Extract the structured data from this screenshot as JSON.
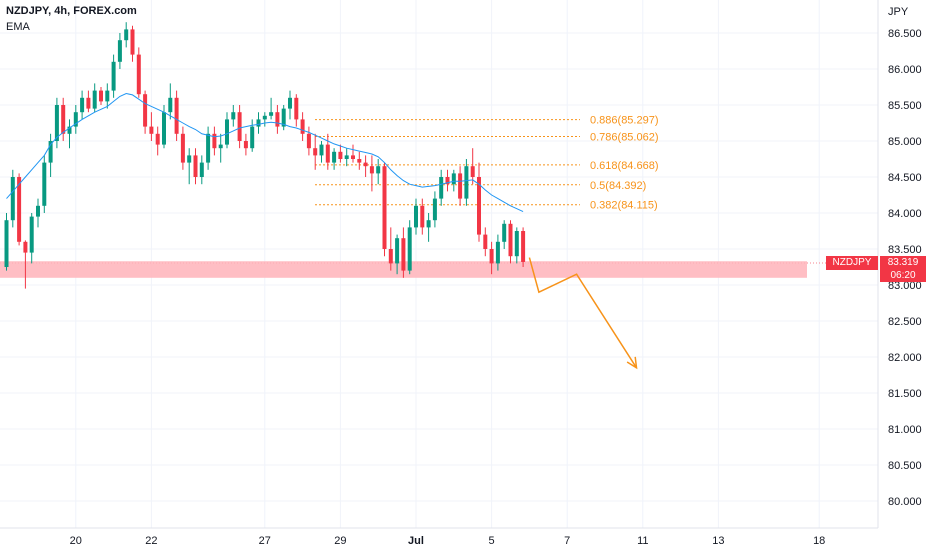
{
  "header": {
    "title": "NZDJPY, 4h, FOREX.com",
    "indicator": "EMA"
  },
  "price_axis": {
    "currency": "JPY"
  },
  "last_price": {
    "symbol": "NZDJPY",
    "price": "83.319",
    "countdown": "06:20",
    "color": "#f23645"
  },
  "colors": {
    "bull": "#089981",
    "bear": "#f23645",
    "ema": "#2196f3",
    "fib": "#f7931a",
    "zone": "#ffb3ba",
    "grid": "#f0f3fa"
  },
  "fib_levels": [
    {
      "label": "0.886(85.297)",
      "price": 85.297
    },
    {
      "label": "0.786(85.062)",
      "price": 85.062
    },
    {
      "label": "0.618(84.668)",
      "price": 84.668
    },
    {
      "label": "0.5(84.392)",
      "price": 84.392
    },
    {
      "label": "0.382(84.115)",
      "price": 84.115
    }
  ],
  "support_zone": {
    "low": 83.1,
    "high": 83.33
  },
  "projection_path": [
    {
      "x": 83,
      "y": 83.38
    },
    {
      "x": 84.5,
      "y": 82.9
    },
    {
      "x": 90.5,
      "y": 83.15
    },
    {
      "x": 100,
      "y": 81.85
    }
  ],
  "chart_data": {
    "type": "candlestick",
    "title": "NZDJPY, 4h, FOREX.com",
    "ylabel": "JPY",
    "ylim": [
      79.65,
      87.0
    ],
    "y_ticks": [
      "86.500",
      "86.000",
      "85.500",
      "85.000",
      "84.500",
      "84.000",
      "83.500",
      "83.000",
      "82.500",
      "82.000",
      "81.500",
      "81.000",
      "80.500",
      "80.000"
    ],
    "x_tick_labels": [
      "20",
      "22",
      "27",
      "29",
      "Jul",
      "5",
      "7",
      "11",
      "13",
      "18"
    ],
    "x_tick_index": [
      11,
      23,
      41,
      53,
      65,
      77,
      89,
      101,
      113,
      129
    ],
    "grid": true,
    "ohlc": [
      [
        83.25,
        84.0,
        83.2,
        83.9
      ],
      [
        83.9,
        84.6,
        83.8,
        84.5
      ],
      [
        84.5,
        84.55,
        83.55,
        83.6
      ],
      [
        83.6,
        83.62,
        82.95,
        83.45
      ],
      [
        83.45,
        84.0,
        83.3,
        83.95
      ],
      [
        83.95,
        84.2,
        83.8,
        84.1
      ],
      [
        84.1,
        84.8,
        84.0,
        84.7
      ],
      [
        84.7,
        85.1,
        84.5,
        85.0
      ],
      [
        85.0,
        85.6,
        84.9,
        85.5
      ],
      [
        85.5,
        85.6,
        85.0,
        85.1
      ],
      [
        85.1,
        85.3,
        84.9,
        85.2
      ],
      [
        85.2,
        85.5,
        85.1,
        85.4
      ],
      [
        85.4,
        85.7,
        85.3,
        85.6
      ],
      [
        85.6,
        85.7,
        85.4,
        85.45
      ],
      [
        85.45,
        85.8,
        85.4,
        85.7
      ],
      [
        85.7,
        85.75,
        85.5,
        85.55
      ],
      [
        85.55,
        85.8,
        85.45,
        85.7
      ],
      [
        85.7,
        86.2,
        85.6,
        86.1
      ],
      [
        86.1,
        86.5,
        86.0,
        86.4
      ],
      [
        86.4,
        86.65,
        86.3,
        86.55
      ],
      [
        86.55,
        86.6,
        86.1,
        86.2
      ],
      [
        86.2,
        86.3,
        85.6,
        85.65
      ],
      [
        85.65,
        85.7,
        85.1,
        85.2
      ],
      [
        85.2,
        85.4,
        85.0,
        85.1
      ],
      [
        85.1,
        85.2,
        84.8,
        84.95
      ],
      [
        84.95,
        85.5,
        84.9,
        85.4
      ],
      [
        85.4,
        85.8,
        85.3,
        85.6
      ],
      [
        85.6,
        85.7,
        85.0,
        85.1
      ],
      [
        85.1,
        85.2,
        84.6,
        84.7
      ],
      [
        84.7,
        84.9,
        84.4,
        84.8
      ],
      [
        84.8,
        84.9,
        84.4,
        84.5
      ],
      [
        84.5,
        84.8,
        84.4,
        84.7
      ],
      [
        84.7,
        85.2,
        84.6,
        85.1
      ],
      [
        85.1,
        85.2,
        84.8,
        84.9
      ],
      [
        84.9,
        85.1,
        84.7,
        84.95
      ],
      [
        84.95,
        85.4,
        84.9,
        85.3
      ],
      [
        85.3,
        85.5,
        85.2,
        85.4
      ],
      [
        85.4,
        85.5,
        84.9,
        85.0
      ],
      [
        85.0,
        85.1,
        84.8,
        84.9
      ],
      [
        84.9,
        85.3,
        84.85,
        85.2
      ],
      [
        85.2,
        85.4,
        85.1,
        85.3
      ],
      [
        85.3,
        85.4,
        85.2,
        85.35
      ],
      [
        85.35,
        85.6,
        85.3,
        85.4
      ],
      [
        85.4,
        85.5,
        85.1,
        85.2
      ],
      [
        85.2,
        85.5,
        85.15,
        85.45
      ],
      [
        85.45,
        85.7,
        85.3,
        85.6
      ],
      [
        85.6,
        85.65,
        85.2,
        85.3
      ],
      [
        85.3,
        85.4,
        85.0,
        85.1
      ],
      [
        85.1,
        85.2,
        84.8,
        84.9
      ],
      [
        84.9,
        85.1,
        84.6,
        84.8
      ],
      [
        84.8,
        85.0,
        84.7,
        84.95
      ],
      [
        84.95,
        85.1,
        84.6,
        84.7
      ],
      [
        84.7,
        84.9,
        84.6,
        84.85
      ],
      [
        84.85,
        84.95,
        84.7,
        84.75
      ],
      [
        84.75,
        84.9,
        84.65,
        84.8
      ],
      [
        84.8,
        84.95,
        84.7,
        84.75
      ],
      [
        84.75,
        84.85,
        84.6,
        84.7
      ],
      [
        84.7,
        84.8,
        84.5,
        84.65
      ],
      [
        84.65,
        84.8,
        84.3,
        84.55
      ],
      [
        84.55,
        84.75,
        84.4,
        84.65
      ],
      [
        84.65,
        84.7,
        83.4,
        83.5
      ],
      [
        83.5,
        83.8,
        83.2,
        83.3
      ],
      [
        83.3,
        83.7,
        83.15,
        83.65
      ],
      [
        83.65,
        83.8,
        83.1,
        83.2
      ],
      [
        83.2,
        83.9,
        83.15,
        83.8
      ],
      [
        83.8,
        84.2,
        83.7,
        84.1
      ],
      [
        84.1,
        84.2,
        83.7,
        83.8
      ],
      [
        83.8,
        84.0,
        83.6,
        83.9
      ],
      [
        83.9,
        84.3,
        83.8,
        84.2
      ],
      [
        84.2,
        84.6,
        84.1,
        84.5
      ],
      [
        84.5,
        84.6,
        84.3,
        84.4
      ],
      [
        84.4,
        84.6,
        84.3,
        84.55
      ],
      [
        84.55,
        84.65,
        84.1,
        84.2
      ],
      [
        84.2,
        84.75,
        84.1,
        84.65
      ],
      [
        84.65,
        84.9,
        84.4,
        84.5
      ],
      [
        84.5,
        84.7,
        83.6,
        83.7
      ],
      [
        83.7,
        83.8,
        83.4,
        83.5
      ],
      [
        83.5,
        83.6,
        83.15,
        83.3
      ],
      [
        83.3,
        83.7,
        83.2,
        83.6
      ],
      [
        83.6,
        83.9,
        83.5,
        83.85
      ],
      [
        83.85,
        83.9,
        83.3,
        83.4
      ],
      [
        83.4,
        83.8,
        83.3,
        83.75
      ],
      [
        83.75,
        83.8,
        83.25,
        83.32
      ]
    ],
    "ema": [
      84.2,
      84.3,
      84.4,
      84.5,
      84.6,
      84.7,
      84.8,
      84.95,
      85.05,
      85.12,
      85.18,
      85.24,
      85.3,
      85.35,
      85.4,
      85.44,
      85.48,
      85.55,
      85.62,
      85.66,
      85.64,
      85.58,
      85.52,
      85.48,
      85.44,
      85.4,
      85.35,
      85.3,
      85.25,
      85.2,
      85.16,
      85.1,
      85.08,
      85.06,
      85.07,
      85.1,
      85.14,
      85.18,
      85.2,
      85.22,
      85.23,
      85.25,
      85.26,
      85.25,
      85.23,
      85.2,
      85.18,
      85.15,
      85.12,
      85.08,
      85.04,
      85.0,
      84.96,
      84.93,
      84.9,
      84.88,
      84.86,
      84.84,
      84.82,
      84.78,
      84.7,
      84.6,
      84.52,
      84.45,
      84.4,
      84.38,
      84.36,
      84.37,
      84.38,
      84.4,
      84.42,
      84.44,
      84.44,
      84.45,
      84.46,
      84.4,
      84.32,
      84.25,
      84.2,
      84.15,
      84.1,
      84.06,
      84.02
    ]
  }
}
